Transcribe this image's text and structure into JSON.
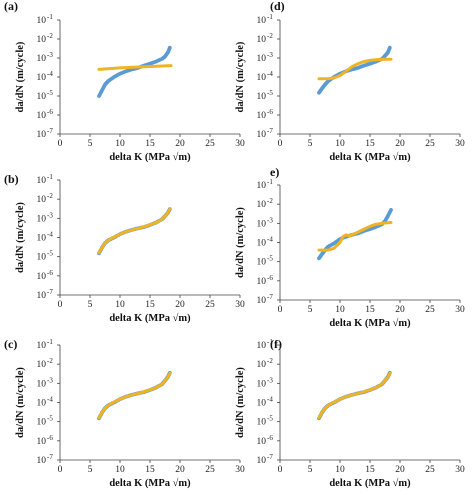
{
  "figure": {
    "panels": [
      "a",
      "b",
      "c",
      "d",
      "e",
      "f"
    ]
  },
  "colors": {
    "experimental": "#5b9bd5",
    "model": "#f0b323",
    "axis": "#444444"
  },
  "chart_data": [
    {
      "id": "a",
      "type": "scatter",
      "panel_label": "(a)",
      "xlabel": "delta K (MPa √m)",
      "ylabel": "da/dN (m/cycle)",
      "x_ticks": [
        0,
        5,
        10,
        15,
        20,
        25,
        30
      ],
      "y_ticks": [
        "10",
        "10",
        "10",
        "10",
        "10",
        "10",
        "10"
      ],
      "y_tick_exps": [
        "-1",
        "-2",
        "-3",
        "-4",
        "-5",
        "-6",
        "-7"
      ],
      "xlim": [
        0,
        30
      ],
      "ylim_log10": [
        -7,
        -1
      ],
      "yscale": "log",
      "series": [
        {
          "role": "experimental",
          "marker": "points",
          "x": [
            6.5,
            7.0,
            7.5,
            8.0,
            9.0,
            10.0,
            11.0,
            12.0,
            13.0,
            14.0,
            15.0,
            16.0,
            17.0,
            17.5,
            18.0,
            18.3
          ],
          "y": [
            1e-05,
            2e-05,
            4e-05,
            6e-05,
            0.0001,
            0.00015,
            0.0002,
            0.00025,
            0.0003,
            0.0004,
            0.0005,
            0.00065,
            0.0009,
            0.0012,
            0.002,
            0.0035
          ]
        },
        {
          "role": "model",
          "marker": "line",
          "x": [
            6.5,
            10,
            14,
            18.5
          ],
          "y": [
            0.00025,
            0.0003,
            0.00035,
            0.0004
          ]
        }
      ]
    },
    {
      "id": "b",
      "type": "scatter",
      "panel_label": "(b)",
      "xlabel": "delta K (MPa √m)",
      "ylabel": "da/dN (m/cycle)",
      "x_ticks": [
        0,
        5,
        10,
        15,
        20,
        25,
        30
      ],
      "y_ticks": [
        "10",
        "10",
        "10",
        "10",
        "10",
        "10",
        "10"
      ],
      "y_tick_exps": [
        "-1",
        "-2",
        "-3",
        "-4",
        "-5",
        "-6",
        "-7"
      ],
      "xlim": [
        0,
        30
      ],
      "ylim_log10": [
        -7,
        -1
      ],
      "yscale": "log",
      "series": [
        {
          "role": "experimental",
          "marker": "points",
          "x": [
            6.5,
            7.0,
            7.5,
            8.0,
            9.0,
            10.0,
            11.0,
            12.0,
            13.0,
            14.0,
            15.0,
            16.0,
            17.0,
            17.5,
            18.0,
            18.3
          ],
          "y": [
            1.5e-05,
            3e-05,
            5e-05,
            7e-05,
            0.0001,
            0.00015,
            0.0002,
            0.00025,
            0.0003,
            0.00035,
            0.00045,
            0.0006,
            0.0009,
            0.0013,
            0.002,
            0.003
          ]
        },
        {
          "role": "model",
          "marker": "line",
          "x": [
            6.5,
            7.0,
            7.5,
            8.0,
            9.0,
            10.0,
            11.0,
            12.0,
            13.0,
            14.0,
            15.0,
            16.0,
            17.0,
            17.5,
            18.0,
            18.3
          ],
          "y": [
            1.6e-05,
            3e-05,
            5e-05,
            7e-05,
            0.000105,
            0.00015,
            0.0002,
            0.00025,
            0.0003,
            0.00036,
            0.00046,
            0.0006,
            0.0009,
            0.0013,
            0.002,
            0.003
          ]
        }
      ]
    },
    {
      "id": "c",
      "type": "scatter",
      "panel_label": "(c)",
      "xlabel": "delta K (MPa √m)",
      "ylabel": "da/dN (m/cycle)",
      "x_ticks": [
        0,
        5,
        10,
        15,
        20,
        25,
        30
      ],
      "y_ticks": [
        "10",
        "10",
        "10",
        "10",
        "10",
        "10",
        "10"
      ],
      "y_tick_exps": [
        "-1",
        "-2",
        "-3",
        "-4",
        "-5",
        "-6",
        "-7"
      ],
      "xlim": [
        0,
        30
      ],
      "ylim_log10": [
        -7,
        -1
      ],
      "yscale": "log",
      "series": [
        {
          "role": "experimental",
          "marker": "points",
          "x": [
            6.5,
            7.0,
            7.5,
            8.0,
            9.0,
            10.0,
            11.0,
            12.0,
            13.0,
            14.0,
            15.0,
            16.0,
            17.0,
            17.5,
            18.0,
            18.3
          ],
          "y": [
            1.5e-05,
            3e-05,
            5e-05,
            7e-05,
            0.0001,
            0.00015,
            0.0002,
            0.00025,
            0.0003,
            0.00035,
            0.00045,
            0.0006,
            0.0009,
            0.0014,
            0.0022,
            0.0035
          ]
        },
        {
          "role": "model",
          "marker": "line",
          "x": [
            6.5,
            7.0,
            7.5,
            8.0,
            9.0,
            10.0,
            11.0,
            12.0,
            13.0,
            14.0,
            15.0,
            16.0,
            17.0,
            17.5,
            18.0,
            18.3
          ],
          "y": [
            1.6e-05,
            3e-05,
            5e-05,
            7e-05,
            0.000105,
            0.00015,
            0.0002,
            0.00025,
            0.0003,
            0.00036,
            0.00046,
            0.0006,
            0.0009,
            0.0014,
            0.0022,
            0.0033
          ]
        }
      ]
    },
    {
      "id": "d",
      "type": "scatter",
      "panel_label": "(d)",
      "xlabel": "delta K (MPa √m)",
      "ylabel": "da/dN (m/cycle)",
      "x_ticks": [
        0,
        5,
        10,
        15,
        20,
        25,
        30
      ],
      "y_ticks": [
        "10",
        "10",
        "10",
        "10",
        "10",
        "10",
        "10"
      ],
      "y_tick_exps": [
        "-1",
        "-2",
        "-3",
        "-4",
        "-5",
        "-6",
        "-7"
      ],
      "xlim": [
        0,
        30
      ],
      "ylim_log10": [
        -7,
        -1
      ],
      "yscale": "log",
      "series": [
        {
          "role": "experimental",
          "marker": "points",
          "x": [
            6.5,
            7.0,
            7.5,
            8.0,
            9.0,
            10.0,
            11.0,
            12.0,
            13.0,
            14.0,
            15.0,
            16.0,
            17.0,
            17.5,
            18.0,
            18.3
          ],
          "y": [
            1.5e-05,
            2.5e-05,
            4e-05,
            6e-05,
            0.0001,
            0.00015,
            0.0002,
            0.00025,
            0.0003,
            0.0004,
            0.0005,
            0.00065,
            0.0009,
            0.0013,
            0.002,
            0.0035
          ]
        },
        {
          "role": "model",
          "marker": "line",
          "x": [
            6.5,
            8.0,
            9.0,
            10.0,
            11.0,
            12.0,
            13.0,
            14.0,
            15.0,
            16.0,
            17.0,
            18.5
          ],
          "y": [
            8e-05,
            8e-05,
            9e-05,
            0.00012,
            0.0002,
            0.00035,
            0.0005,
            0.00065,
            0.00075,
            0.0008,
            0.00085,
            0.00085
          ]
        }
      ]
    },
    {
      "id": "e",
      "type": "scatter",
      "panel_label": "e)",
      "xlabel": "delta K (MPa √m)",
      "ylabel": "da/dN (m/cycle)",
      "x_ticks": [
        0,
        5,
        10,
        15,
        20,
        25,
        30
      ],
      "y_ticks": [
        "10",
        "10",
        "10",
        "10",
        "10",
        "10",
        "10"
      ],
      "y_tick_exps": [
        "-1",
        "-2",
        "-3",
        "-4",
        "-5",
        "-6",
        "-7"
      ],
      "xlim": [
        0,
        30
      ],
      "ylim_log10": [
        -7,
        -1
      ],
      "yscale": "log",
      "series": [
        {
          "role": "experimental",
          "marker": "points",
          "x": [
            6.5,
            7.0,
            7.5,
            8.0,
            9.0,
            10.0,
            11.0,
            12.0,
            13.0,
            14.0,
            15.0,
            16.0,
            17.0,
            17.5,
            18.0,
            18.5
          ],
          "y": [
            1.5e-05,
            2.5e-05,
            4e-05,
            6e-05,
            9e-05,
            0.00015,
            0.0002,
            0.00025,
            0.0003,
            0.0004,
            0.0005,
            0.00065,
            0.0009,
            0.0013,
            0.0025,
            0.005
          ]
        },
        {
          "role": "model",
          "marker": "line",
          "x": [
            6.5,
            8.0,
            9.0,
            10.0,
            10.5,
            11.0,
            11.5,
            12.0,
            13.0,
            14.0,
            15.0,
            16.0,
            17.0,
            18.5
          ],
          "y": [
            4e-05,
            4e-05,
            5e-05,
            0.0001,
            0.0002,
            0.00025,
            0.00022,
            0.00025,
            0.00035,
            0.0005,
            0.0007,
            0.0009,
            0.001,
            0.0011
          ]
        }
      ]
    },
    {
      "id": "f",
      "type": "scatter",
      "panel_label": "(f)",
      "xlabel": "delta K (MPa √m)",
      "ylabel": "da/dN (m/cycle)",
      "x_ticks": [
        0,
        5,
        10,
        15,
        20,
        25,
        30
      ],
      "y_ticks": [
        "10",
        "10",
        "10",
        "10",
        "10",
        "10",
        "10"
      ],
      "y_tick_exps": [
        "-1",
        "-2",
        "-3",
        "-4",
        "-5",
        "-6",
        "-7"
      ],
      "xlim": [
        0,
        30
      ],
      "ylim_log10": [
        -7,
        -1
      ],
      "yscale": "log",
      "series": [
        {
          "role": "experimental",
          "marker": "points",
          "x": [
            6.5,
            7.0,
            7.5,
            8.0,
            9.0,
            10.0,
            11.0,
            12.0,
            13.0,
            14.0,
            15.0,
            16.0,
            17.0,
            17.5,
            18.0,
            18.3
          ],
          "y": [
            1.5e-05,
            3e-05,
            5e-05,
            7e-05,
            0.0001,
            0.00015,
            0.0002,
            0.00025,
            0.0003,
            0.00035,
            0.00045,
            0.0006,
            0.0009,
            0.0014,
            0.0022,
            0.0035
          ]
        },
        {
          "role": "model",
          "marker": "line",
          "x": [
            6.5,
            7.0,
            7.5,
            8.0,
            9.0,
            10.0,
            11.0,
            12.0,
            13.0,
            14.0,
            15.0,
            16.0,
            17.0,
            17.5,
            18.0,
            18.3
          ],
          "y": [
            1.6e-05,
            3e-05,
            5e-05,
            7e-05,
            0.000105,
            0.00015,
            0.0002,
            0.00025,
            0.0003,
            0.00036,
            0.00046,
            0.0006,
            0.0009,
            0.0014,
            0.0022,
            0.0033
          ]
        }
      ]
    }
  ]
}
